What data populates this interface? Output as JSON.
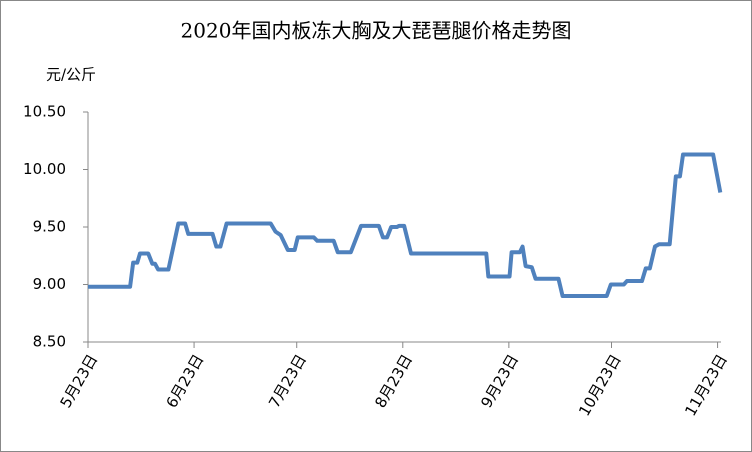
{
  "chart_data": {
    "type": "line",
    "title": "2020年国内板冻大胸及大琵琶腿价格走势图",
    "y_label": "元/公斤",
    "xlim": [
      0,
      185
    ],
    "xticks": [
      {
        "value": 0,
        "label": "5月23日"
      },
      {
        "value": 31,
        "label": "6月23日"
      },
      {
        "value": 61,
        "label": "7月23日"
      },
      {
        "value": 92,
        "label": "8月23日"
      },
      {
        "value": 123,
        "label": "9月23日"
      },
      {
        "value": 153,
        "label": "10月23日"
      },
      {
        "value": 184,
        "label": "11月23日"
      }
    ],
    "ylim": [
      8.5,
      10.5
    ],
    "yticks": [
      {
        "value": 8.5,
        "label": "8.50"
      },
      {
        "value": 9,
        "label": "9.00"
      },
      {
        "value": 9.5,
        "label": "9.50"
      },
      {
        "value": 10,
        "label": "10.00"
      },
      {
        "value": 10.5,
        "label": "10.50"
      }
    ],
    "grid": false,
    "series": [
      {
        "color": "#4f81bd",
        "x": [
          0,
          12.3,
          13.2,
          14.4,
          15.2,
          17.6,
          18.8,
          19.6,
          20.5,
          23.5,
          26.4,
          28.4,
          29.3,
          36.4,
          37.5,
          38.7,
          40.5,
          47.5,
          53.4,
          54.8,
          56.3,
          58.4,
          60.4,
          61.3,
          66,
          67,
          71.8,
          73,
          76.8,
          79.8,
          85,
          86.2,
          87.4,
          88.6,
          90.3,
          90.9,
          92.4,
          94.4,
          116.4,
          117,
          123.2,
          123.8,
          126.2,
          127,
          127.9,
          129.7,
          130.8,
          137.5,
          138.7,
          151.6,
          152.8,
          156.6,
          157.5,
          161.9,
          163,
          164.2,
          165.7,
          166.9,
          170,
          171.8,
          173,
          173.9,
          182.7,
          184.8
        ],
        "values": [
          8.98,
          8.98,
          9.19,
          9.19,
          9.27,
          9.27,
          9.18,
          9.18,
          9.13,
          9.13,
          9.53,
          9.53,
          9.44,
          9.44,
          9.33,
          9.33,
          9.53,
          9.53,
          9.53,
          9.46,
          9.43,
          9.3,
          9.3,
          9.41,
          9.41,
          9.38,
          9.38,
          9.28,
          9.28,
          9.51,
          9.51,
          9.41,
          9.41,
          9.5,
          9.5,
          9.51,
          9.51,
          9.27,
          9.27,
          9.07,
          9.07,
          9.28,
          9.28,
          9.33,
          9.16,
          9.15,
          9.05,
          9.05,
          8.9,
          8.9,
          9,
          9,
          9.03,
          9.03,
          9.14,
          9.14,
          9.33,
          9.35,
          9.35,
          9.94,
          9.94,
          10.13,
          10.13,
          9.8
        ]
      }
    ]
  }
}
